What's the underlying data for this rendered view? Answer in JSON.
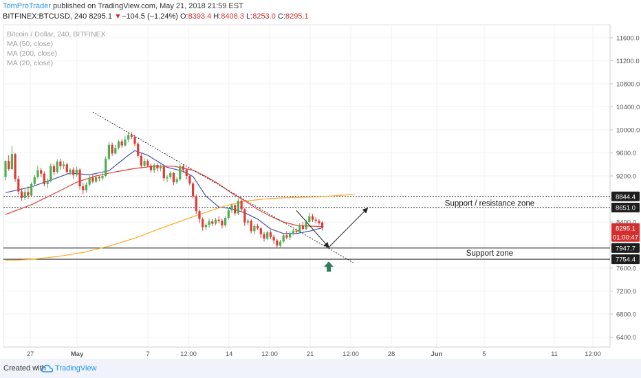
{
  "header": {
    "author": "TomProTrader",
    "published_text": "published on TradingView.com, May 21, 2018 21:59 EST",
    "symbol": "BITFINEX:BTCUSD, 240",
    "last": "8295.1",
    "change_arrow": "▼",
    "change": "−104.5 (−1.24%)",
    "o_label": "O:",
    "o_value": "8393.4",
    "h_label": "H:",
    "h_value": "8408.3",
    "l_label": "L:",
    "l_value": "8253.0",
    "c_label": "C:",
    "c_value": "8295.1"
  },
  "legend": {
    "title": "Bitcoin / Dollar, 240, BITFINEX",
    "ma50": "MA (50, close)",
    "ma200": "MA (200, close)",
    "ma20": "MA (20, close)"
  },
  "footer": {
    "created_with": "Created with",
    "brand": "TradingView"
  },
  "colors": {
    "up": "#4caf50",
    "down": "#e53935",
    "ma20": "#3f51b5",
    "ma50": "#e53935",
    "ma200": "#ffa726",
    "price_tag": "#d32f2f",
    "arrow_up": "#2e7d5b",
    "grid": "#f0f0f0"
  },
  "chart_data": {
    "type": "line",
    "title": "Bitcoin / Dollar, 240, BITFINEX",
    "xlabel": "",
    "ylabel": "",
    "ylim": [
      6200,
      11900
    ],
    "y_ticks": [
      6400,
      6800,
      7200,
      7600,
      8000,
      8400,
      8800,
      9200,
      9600,
      10000,
      10400,
      10800,
      11200,
      11600
    ],
    "x_tick_labels": [
      "27",
      "May",
      "7",
      "12:00",
      "14",
      "12:00",
      "21",
      "12:00",
      "28",
      "Jun",
      "5",
      "11",
      "12:00"
    ],
    "grid": true,
    "price_labels": [
      {
        "label": "8844.4",
        "value": 8844.4,
        "style": "dark"
      },
      {
        "label": "8651.0",
        "value": 8651.0,
        "style": "dark"
      },
      {
        "label": "8295.1",
        "value": 8295.1,
        "style": "red"
      },
      {
        "label": "01:00:47",
        "value": 8140,
        "style": "red"
      },
      {
        "label": "7947.7",
        "value": 7947.7,
        "style": "dark"
      },
      {
        "label": "7754.4",
        "value": 7754.4,
        "style": "dark"
      }
    ],
    "horizontal_levels": [
      {
        "value": 8844.4,
        "style": "dotted"
      },
      {
        "value": 8651.0,
        "style": "dotted"
      },
      {
        "value": 7947.7,
        "style": "solid"
      },
      {
        "value": 7754.4,
        "style": "solid"
      }
    ],
    "zone_labels": [
      {
        "text": "Support / resistance zone",
        "value": 8730
      },
      {
        "text": "Support zone",
        "value": 7860
      }
    ],
    "candles": [
      [
        9180,
        9460,
        9120,
        9470
      ],
      [
        9460,
        9320,
        9290,
        9560
      ],
      [
        9320,
        9580,
        9300,
        9720
      ],
      [
        9580,
        9150,
        9100,
        9600
      ],
      [
        9150,
        8930,
        8880,
        9200
      ],
      [
        8930,
        8820,
        8770,
        8990
      ],
      [
        8820,
        8920,
        8780,
        8990
      ],
      [
        8920,
        8860,
        8800,
        9020
      ],
      [
        8860,
        9060,
        8830,
        9090
      ],
      [
        9060,
        9180,
        9030,
        9220
      ],
      [
        9180,
        9300,
        9150,
        9380
      ],
      [
        9300,
        9240,
        9180,
        9340
      ],
      [
        9240,
        9060,
        9020,
        9280
      ],
      [
        9060,
        9110,
        8990,
        9160
      ],
      [
        9110,
        9370,
        9090,
        9420
      ],
      [
        9370,
        9270,
        9210,
        9410
      ],
      [
        9270,
        9450,
        9240,
        9490
      ],
      [
        9450,
        9370,
        9310,
        9500
      ],
      [
        9370,
        9400,
        9320,
        9460
      ],
      [
        9400,
        9270,
        9220,
        9430
      ],
      [
        9270,
        9310,
        9210,
        9340
      ],
      [
        9310,
        9220,
        9150,
        9350
      ],
      [
        9220,
        9310,
        9180,
        9360
      ],
      [
        9310,
        9020,
        8960,
        9330
      ],
      [
        9020,
        8950,
        8880,
        9080
      ],
      [
        8950,
        9050,
        8910,
        9090
      ],
      [
        9050,
        9170,
        9020,
        9210
      ],
      [
        9170,
        9100,
        9070,
        9240
      ],
      [
        9100,
        9180,
        9080,
        9230
      ],
      [
        9180,
        9160,
        9110,
        9200
      ],
      [
        9160,
        9200,
        9120,
        9250
      ],
      [
        9200,
        9500,
        9180,
        9540
      ],
      [
        9500,
        9740,
        9470,
        9790
      ],
      [
        9740,
        9590,
        9550,
        9780
      ],
      [
        9590,
        9690,
        9570,
        9740
      ],
      [
        9690,
        9800,
        9660,
        9830
      ],
      [
        9800,
        9730,
        9690,
        9840
      ],
      [
        9730,
        9830,
        9710,
        9890
      ],
      [
        9830,
        9910,
        9790,
        9960
      ],
      [
        9910,
        9880,
        9840,
        9960
      ],
      [
        9880,
        9760,
        9720,
        9910
      ],
      [
        9760,
        9550,
        9520,
        9790
      ],
      [
        9550,
        9380,
        9330,
        9590
      ],
      [
        9380,
        9460,
        9340,
        9500
      ],
      [
        9460,
        9380,
        9350,
        9490
      ],
      [
        9380,
        9300,
        9260,
        9420
      ],
      [
        9300,
        9390,
        9250,
        9420
      ],
      [
        9390,
        9330,
        9280,
        9420
      ],
      [
        9330,
        9360,
        9280,
        9400
      ],
      [
        9360,
        9160,
        9110,
        9380
      ],
      [
        9160,
        9180,
        9090,
        9220
      ],
      [
        9180,
        9250,
        9150,
        9280
      ],
      [
        9250,
        9090,
        9040,
        9270
      ],
      [
        9090,
        9140,
        9060,
        9180
      ],
      [
        9140,
        9370,
        9110,
        9410
      ],
      [
        9370,
        9310,
        9260,
        9400
      ],
      [
        9310,
        9200,
        9140,
        9330
      ],
      [
        9200,
        9070,
        9030,
        9230
      ],
      [
        9070,
        8850,
        8810,
        9090
      ],
      [
        8850,
        8590,
        8540,
        8880
      ],
      [
        8590,
        8450,
        8380,
        8620
      ],
      [
        8450,
        8310,
        8250,
        8480
      ],
      [
        8310,
        8350,
        8260,
        8380
      ],
      [
        8350,
        8410,
        8300,
        8460
      ],
      [
        8410,
        8370,
        8330,
        8450
      ],
      [
        8370,
        8440,
        8340,
        8470
      ],
      [
        8440,
        8420,
        8380,
        8500
      ],
      [
        8420,
        8340,
        8290,
        8460
      ],
      [
        8340,
        8470,
        8310,
        8500
      ],
      [
        8470,
        8600,
        8440,
        8630
      ],
      [
        8600,
        8690,
        8560,
        8720
      ],
      [
        8690,
        8550,
        8510,
        8710
      ],
      [
        8550,
        8770,
        8520,
        8810
      ],
      [
        8770,
        8620,
        8580,
        8790
      ],
      [
        8620,
        8390,
        8330,
        8640
      ],
      [
        8390,
        8420,
        8340,
        8450
      ],
      [
        8420,
        8240,
        8200,
        8450
      ],
      [
        8240,
        8330,
        8180,
        8360
      ],
      [
        8330,
        8290,
        8260,
        8370
      ],
      [
        8290,
        8190,
        8120,
        8310
      ],
      [
        8190,
        8110,
        8060,
        8230
      ],
      [
        8110,
        8220,
        8080,
        8250
      ],
      [
        8220,
        8140,
        8100,
        8260
      ],
      [
        8140,
        8080,
        8020,
        8180
      ],
      [
        8080,
        7990,
        7950,
        8110
      ],
      [
        7990,
        8060,
        7940,
        8090
      ],
      [
        8060,
        8170,
        8030,
        8200
      ],
      [
        8170,
        8130,
        8100,
        8240
      ],
      [
        8130,
        8200,
        8090,
        8240
      ],
      [
        8200,
        8250,
        8170,
        8280
      ],
      [
        8250,
        8230,
        8190,
        8290
      ],
      [
        8230,
        8340,
        8210,
        8380
      ],
      [
        8340,
        8280,
        8250,
        8400
      ],
      [
        8280,
        8400,
        8260,
        8440
      ],
      [
        8400,
        8500,
        8380,
        8560
      ],
      [
        8500,
        8440,
        8400,
        8540
      ],
      [
        8440,
        8420,
        8380,
        8480
      ],
      [
        8420,
        8380,
        8350,
        8450
      ],
      [
        8393,
        8295,
        8253,
        8408
      ]
    ],
    "series": [
      {
        "name": "MA (20, close)",
        "color": "#3f51b5",
        "x": [
          0,
          8,
          14,
          20,
          26,
          32,
          38,
          40,
          44,
          50,
          55,
          58,
          62,
          66,
          70,
          74,
          78,
          82,
          86,
          90,
          94,
          98
        ],
        "y": [
          8910,
          9010,
          9130,
          9250,
          9220,
          9290,
          9560,
          9640,
          9560,
          9350,
          9280,
          9190,
          8850,
          8660,
          8630,
          8560,
          8450,
          8280,
          8200,
          8200,
          8240,
          8300
        ]
      },
      {
        "name": "MA (50, close)",
        "color": "#e53935",
        "x": [
          0,
          8,
          16,
          22,
          28,
          34,
          40,
          46,
          52,
          58,
          62,
          66,
          70,
          74,
          78,
          82,
          86,
          90,
          94,
          98
        ],
        "y": [
          8530,
          8700,
          8920,
          9090,
          9200,
          9270,
          9330,
          9370,
          9370,
          9300,
          9190,
          9060,
          8900,
          8770,
          8620,
          8500,
          8400,
          8340,
          8330,
          8320
        ]
      },
      {
        "name": "MA (200, close)",
        "color": "#ffa726",
        "x": [
          0,
          8,
          16,
          24,
          32,
          40,
          48,
          56,
          62,
          68,
          74,
          80,
          86,
          92,
          98,
          108
        ],
        "y": [
          7730,
          7750,
          7800,
          7870,
          7980,
          8120,
          8290,
          8450,
          8570,
          8680,
          8760,
          8800,
          8820,
          8830,
          8840,
          8880
        ]
      }
    ],
    "annotations": [
      {
        "type": "trendline",
        "style": "dotted",
        "x": [
          27,
          108
        ],
        "y": [
          10310,
          7680
        ]
      },
      {
        "type": "arrow",
        "x": [
          90,
          100
        ],
        "y": [
          8600,
          7960
        ]
      },
      {
        "type": "arrow",
        "x": [
          100,
          112
        ],
        "y": [
          7960,
          8640
        ]
      },
      {
        "type": "up-marker",
        "x": 100,
        "y": 7620
      }
    ]
  }
}
